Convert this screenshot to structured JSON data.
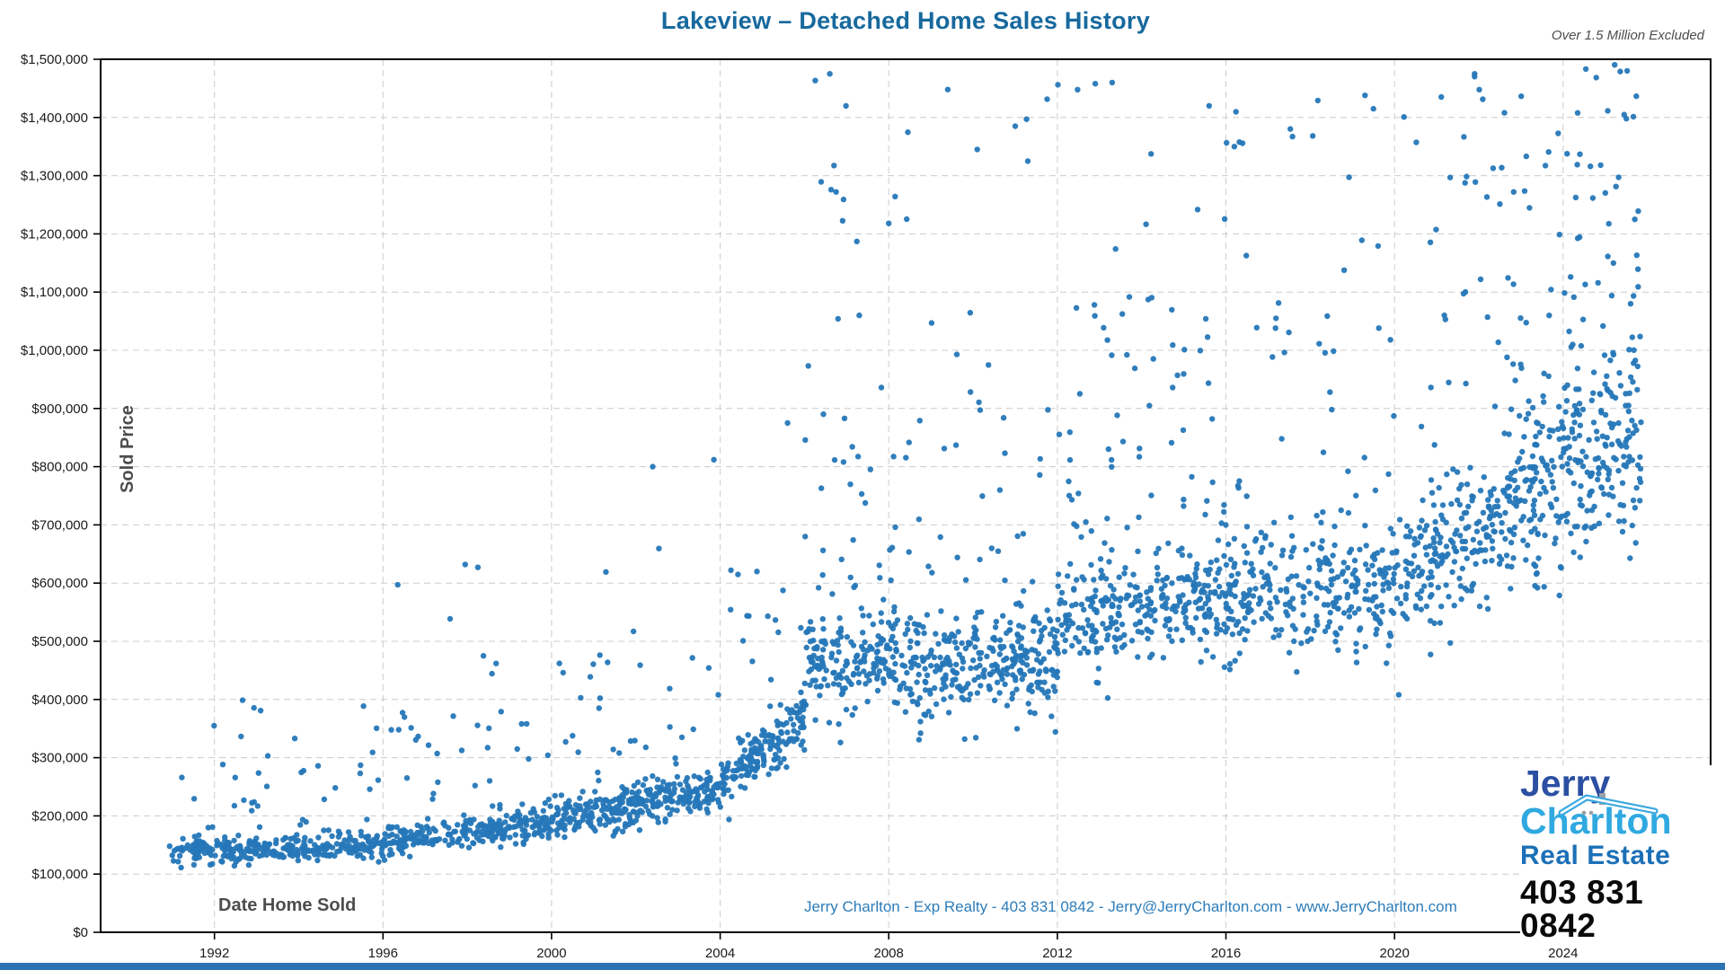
{
  "title": "Lakeview – Detached Home Sales History",
  "note_top_right": "Over 1.5 Million Excluded",
  "footer_contact": "Jerry Charlton - Exp Realty - 403 831 0842 - Jerry@JerryCharlton.com - www.JerryCharlton.com",
  "logo": {
    "line1": "Jerry",
    "line2": "Charlton",
    "line3": "Real Estate",
    "phone": "403 831 0842",
    "colors": {
      "line1": "#2b4fa2",
      "line2": "#30a9e0",
      "line3": "#1c70b7",
      "phone": "#0a0a0a",
      "roof": "#3aa8e0",
      "chimney": "#9aa0a6"
    }
  },
  "chart_data": {
    "type": "scatter",
    "title": "Lakeview – Detached Home Sales History",
    "xlabel": "Date Home Sold",
    "ylabel": "Sold Price",
    "xlim": [
      1989.3,
      2027.5
    ],
    "ylim": [
      0,
      1500000
    ],
    "x_ticks": [
      1992,
      1996,
      2000,
      2004,
      2008,
      2012,
      2016,
      2020,
      2024
    ],
    "y_tick_step": 100000,
    "grid": true,
    "legend": false,
    "exclusion_note": "Over 1.5 Million Excluded",
    "style": {
      "point_color": "#2577b8",
      "point_radius": 3.2,
      "grid_color": "#cccccc",
      "axis_color": "#000000",
      "tick_label_color": "#1a1a1a",
      "inner_label_color": "#4d4d4d",
      "title_color": "#17699d",
      "footer_color": "#2d7cb9",
      "bottom_bar_color": "#2e74b5"
    },
    "seed": 42,
    "segments": [
      {
        "from": 1990.9,
        "to": 1996.0,
        "n": 350,
        "price_start": 140000,
        "price_end": 150000,
        "sigma": 11000,
        "outliers": [
          {
            "frac": 0.1,
            "min": 170000,
            "max": 310000
          },
          {
            "frac": 0.015,
            "min": 310000,
            "max": 400000
          }
        ]
      },
      {
        "from": 1996.0,
        "to": 2000.0,
        "n": 300,
        "price_start": 155000,
        "price_end": 188000,
        "sigma": 14000,
        "outliers": [
          {
            "frac": 0.08,
            "min": 215000,
            "max": 380000
          },
          {
            "frac": 0.013,
            "min": 380000,
            "max": 635000
          }
        ]
      },
      {
        "from": 2000.0,
        "to": 2004.0,
        "n": 350,
        "price_start": 192000,
        "price_end": 248000,
        "sigma": 18000,
        "outliers": [
          {
            "frac": 0.07,
            "min": 285000,
            "max": 480000
          },
          {
            "frac": 0.012,
            "min": 480000,
            "max": 810000
          }
        ]
      },
      {
        "from": 2004.0,
        "to": 2006.0,
        "n": 180,
        "price_start": 258000,
        "price_end": 365000,
        "sigma": 26000,
        "outliers": [
          {
            "frac": 0.06,
            "min": 420000,
            "max": 640000
          },
          {
            "frac": 0.01,
            "min": 640000,
            "max": 880000
          }
        ]
      },
      {
        "from": 2006.0,
        "to": 2008.2,
        "n": 220,
        "price_start": 450000,
        "price_end": 478000,
        "sigma": 42000,
        "outliers": [
          {
            "frac": 0.1,
            "min": 560000,
            "max": 900000
          },
          {
            "frac": 0.055,
            "min": 900000,
            "max": 1480000
          }
        ]
      },
      {
        "from": 2008.2,
        "to": 2012.0,
        "n": 350,
        "price_start": 452000,
        "price_end": 468000,
        "sigma": 45000,
        "outliers": [
          {
            "frac": 0.1,
            "min": 580000,
            "max": 950000
          },
          {
            "frac": 0.028,
            "min": 950000,
            "max": 1450000
          }
        ]
      },
      {
        "from": 2012.0,
        "to": 2016.0,
        "n": 360,
        "price_start": 535000,
        "price_end": 578000,
        "sigma": 48000,
        "outliers": [
          {
            "frac": 0.12,
            "min": 680000,
            "max": 1100000
          },
          {
            "frac": 0.028,
            "min": 1100000,
            "max": 1470000
          }
        ]
      },
      {
        "from": 2016.0,
        "to": 2020.0,
        "n": 320,
        "price_start": 578000,
        "price_end": 600000,
        "sigma": 56000,
        "outliers": [
          {
            "frac": 0.12,
            "min": 720000,
            "max": 1200000
          },
          {
            "frac": 0.026,
            "min": 1200000,
            "max": 1450000
          }
        ]
      },
      {
        "from": 2020.0,
        "to": 2022.5,
        "n": 220,
        "price_start": 615000,
        "price_end": 715000,
        "sigma": 62000,
        "outliers": [
          {
            "frac": 0.12,
            "min": 820000,
            "max": 1300000
          },
          {
            "frac": 0.035,
            "min": 1300000,
            "max": 1480000
          }
        ]
      },
      {
        "from": 2022.5,
        "to": 2025.85,
        "n": 380,
        "price_start": 745000,
        "price_end": 845000,
        "sigma": 82000,
        "outliers": [
          {
            "frac": 0.12,
            "min": 960000,
            "max": 1300000
          },
          {
            "frac": 0.035,
            "min": 1300000,
            "max": 1495000
          }
        ]
      }
    ],
    "landmark_points": [
      [
        1996.35,
        597000
      ],
      [
        1997.95,
        632000
      ],
      [
        1998.25,
        627000
      ],
      [
        2002.4,
        800000
      ],
      [
        2003.85,
        812000
      ],
      [
        2005.6,
        875000
      ],
      [
        2006.6,
        1475000
      ],
      [
        2006.75,
        1272000
      ],
      [
        2007.3,
        1060000
      ],
      [
        2008.0,
        1218000
      ],
      [
        2009.4,
        1448000
      ],
      [
        2009.8,
        332000
      ],
      [
        2010.1,
        1345000
      ],
      [
        2011.0,
        1385000
      ],
      [
        2011.3,
        1325000
      ],
      [
        2012.9,
        1458000
      ],
      [
        2013.3,
        1460000
      ],
      [
        2015.6,
        1420000
      ],
      [
        2016.2,
        1350000
      ],
      [
        2019.3,
        1438000
      ],
      [
        2019.5,
        1415000
      ],
      [
        2020.1,
        408000
      ],
      [
        2021.9,
        1475000
      ],
      [
        2025.45,
        1405000
      ],
      [
        2025.5,
        1398000
      ],
      [
        2025.7,
        1225000
      ],
      [
        2025.6,
        1080000
      ]
    ]
  }
}
